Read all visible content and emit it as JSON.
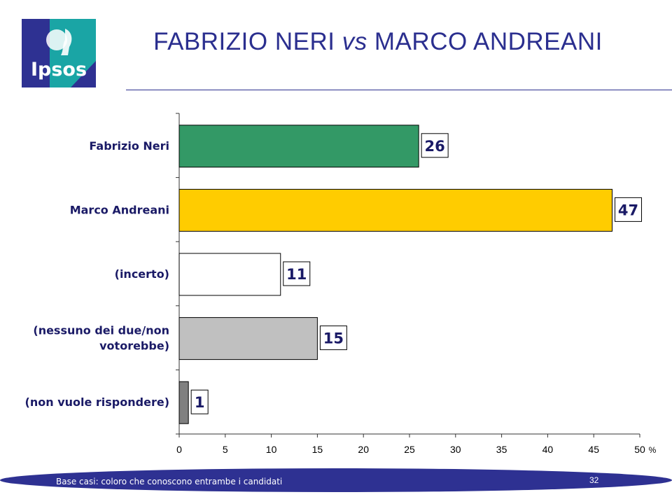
{
  "header": {
    "title_a": "FABRIZIO NERI ",
    "title_vs": "vs",
    "title_b": " MARCO ANDREANI",
    "logo_text": "Ipsos"
  },
  "chart_data": {
    "type": "bar",
    "orientation": "horizontal",
    "categories": [
      "Fabrizio Neri",
      "Marco Andreani",
      "(incerto)",
      "(nessuno dei due/non votorebbe)",
      "(non vuole rispondere)"
    ],
    "category_lines": [
      [
        "Fabrizio Neri"
      ],
      [
        "Marco Andreani"
      ],
      [
        "(incerto)"
      ],
      [
        "(nessuno dei due/non",
        "votorebbe)"
      ],
      [
        "(non vuole rispondere)"
      ]
    ],
    "values": [
      26,
      47,
      11,
      15,
      1
    ],
    "value_labels": [
      "26",
      "47",
      "11",
      "15",
      "1"
    ],
    "colors": [
      "#339966",
      "#ffcc00",
      "#ffffff",
      "#c0c0c0",
      "#808080"
    ],
    "xlim": [
      0,
      50
    ],
    "xticks": [
      0,
      5,
      10,
      15,
      20,
      25,
      30,
      35,
      40,
      45,
      50
    ],
    "x_unit": "%",
    "grid": false,
    "legend": "none"
  },
  "footer": {
    "note": "Base casi: coloro che conoscono entrambe i candidati",
    "page": "32"
  },
  "colors": {
    "title": "#2b2f8f",
    "footer_band": "#2e3192",
    "logo_blue": "#2e3192",
    "logo_teal": "#1aa5a5"
  }
}
